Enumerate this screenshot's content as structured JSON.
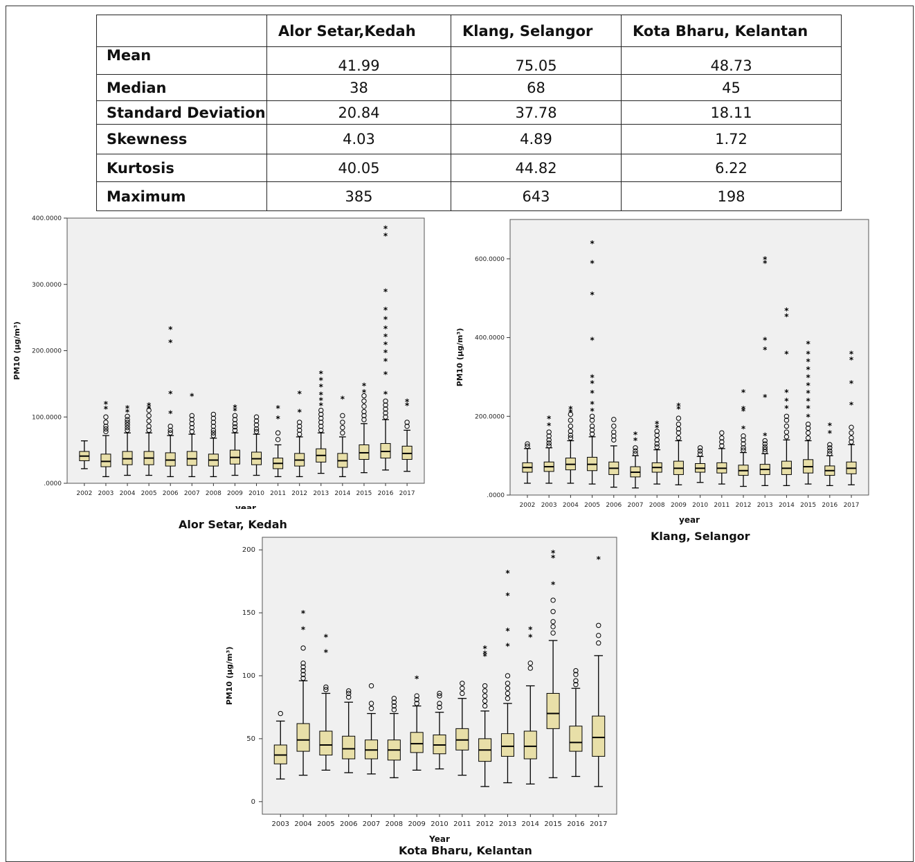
{
  "stats_table": {
    "headers": [
      "",
      "Alor Setar,Kedah",
      "Klang, Selangor",
      "Kota Bharu, Kelantan"
    ],
    "rows": [
      {
        "label": "Mean",
        "values": [
          "41.99",
          "75.05",
          "48.73"
        ]
      },
      {
        "label": "Median",
        "values": [
          "38",
          "68",
          "45"
        ]
      },
      {
        "label": "Standard Deviation",
        "values": [
          "20.84",
          "37.78",
          "18.11"
        ]
      },
      {
        "label": "Skewness",
        "values": [
          "4.03",
          "4.89",
          "1.72"
        ]
      },
      {
        "label": "Kurtosis",
        "values": [
          "40.05",
          "44.82",
          "6.22"
        ]
      },
      {
        "label": "Maximum",
        "values": [
          "385",
          "643",
          "198"
        ]
      }
    ]
  },
  "chart_data": [
    {
      "type": "boxplot",
      "caption": "Alor Setar, Kedah",
      "xlabel": "year",
      "ylabel": "PM10 (μg/m³)",
      "ylim": [
        0,
        400
      ],
      "yticks": [
        ".0000",
        "100.0000",
        "200.0000",
        "300.0000",
        "400.0000"
      ],
      "ytick_values": [
        0,
        100,
        200,
        300,
        400
      ],
      "box_fill": "#e8dfa8",
      "categories": [
        "2002",
        "2003",
        "2004",
        "2005",
        "2006",
        "2007",
        "2008",
        "2009",
        "2010",
        "2011",
        "2012",
        "2013",
        "2014",
        "2015",
        "2016",
        "2017"
      ],
      "boxes": [
        {
          "wl": 22,
          "q1": 34,
          "med": 41,
          "q3": 48,
          "wh": 64,
          "out": [],
          "ext": []
        },
        {
          "wl": 10,
          "q1": 25,
          "med": 33,
          "q3": 44,
          "wh": 72,
          "out": [
            78,
            82,
            86,
            92,
            100
          ],
          "ext": [
            113,
            120
          ]
        },
        {
          "wl": 12,
          "q1": 28,
          "med": 37,
          "q3": 48,
          "wh": 76,
          "out": [
            80,
            84,
            88,
            92,
            96,
            101
          ],
          "ext": [
            108,
            114
          ]
        },
        {
          "wl": 12,
          "q1": 28,
          "med": 38,
          "q3": 48,
          "wh": 76,
          "out": [
            80,
            86,
            94,
            102,
            110
          ],
          "ext": [
            114,
            118
          ]
        },
        {
          "wl": 10,
          "q1": 26,
          "med": 35,
          "q3": 46,
          "wh": 72,
          "out": [
            76,
            80,
            86
          ],
          "ext": [
            106,
            136,
            213,
            233
          ]
        },
        {
          "wl": 10,
          "q1": 27,
          "med": 37,
          "q3": 48,
          "wh": 74,
          "out": [
            78,
            84,
            90,
            96,
            102
          ],
          "ext": [
            132
          ]
        },
        {
          "wl": 10,
          "q1": 26,
          "med": 35,
          "q3": 44,
          "wh": 68,
          "out": [
            72,
            76,
            80,
            86,
            92,
            98,
            104
          ],
          "ext": []
        },
        {
          "wl": 12,
          "q1": 29,
          "med": 39,
          "q3": 50,
          "wh": 76,
          "out": [
            80,
            85,
            90,
            96,
            102
          ],
          "ext": [
            110,
            115
          ]
        },
        {
          "wl": 12,
          "q1": 28,
          "med": 37,
          "q3": 47,
          "wh": 74,
          "out": [
            78,
            82,
            88,
            94,
            100
          ],
          "ext": []
        },
        {
          "wl": 10,
          "q1": 22,
          "med": 30,
          "q3": 38,
          "wh": 58,
          "out": [
            66,
            76
          ],
          "ext": [
            98,
            114
          ]
        },
        {
          "wl": 10,
          "q1": 26,
          "med": 35,
          "q3": 45,
          "wh": 70,
          "out": [
            74,
            80,
            86,
            92
          ],
          "ext": [
            108,
            136
          ]
        },
        {
          "wl": 15,
          "q1": 32,
          "med": 42,
          "q3": 52,
          "wh": 76,
          "out": [
            80,
            86,
            92,
            98,
            104,
            110
          ],
          "ext": [
            118,
            126,
            134,
            146,
            156,
            166
          ]
        },
        {
          "wl": 10,
          "q1": 24,
          "med": 34,
          "q3": 45,
          "wh": 70,
          "out": [
            76,
            84,
            92,
            102
          ],
          "ext": [
            128
          ]
        },
        {
          "wl": 16,
          "q1": 36,
          "med": 46,
          "q3": 58,
          "wh": 90,
          "out": [
            96,
            102,
            108,
            116,
            124,
            132
          ],
          "ext": [
            138,
            148
          ]
        },
        {
          "wl": 20,
          "q1": 38,
          "med": 48,
          "q3": 60,
          "wh": 96,
          "out": [
            100,
            106,
            112,
            118,
            124
          ],
          "ext": [
            135,
            165,
            185,
            198,
            210,
            222,
            234,
            248,
            262,
            290,
            374,
            385
          ]
        },
        {
          "wl": 18,
          "q1": 36,
          "med": 45,
          "q3": 56,
          "wh": 80,
          "out": [
            86,
            92
          ],
          "ext": [
            118,
            124
          ]
        }
      ]
    },
    {
      "type": "boxplot",
      "caption": "Klang, Selangor",
      "xlabel": "year",
      "ylabel": "PM10 (μg/m³)",
      "ylim": [
        0,
        700
      ],
      "yticks": [
        ".0000",
        "200.0000",
        "400.0000",
        "600.0000"
      ],
      "ytick_values": [
        0,
        200,
        400,
        600
      ],
      "box_fill": "#e8dfa8",
      "categories": [
        "2002",
        "2003",
        "2004",
        "2005",
        "2006",
        "2007",
        "2008",
        "2009",
        "2010",
        "2011",
        "2012",
        "2013",
        "2014",
        "2015",
        "2016",
        "2017"
      ],
      "boxes": [
        {
          "wl": 30,
          "q1": 58,
          "med": 70,
          "q3": 82,
          "wh": 118,
          "out": [
            124,
            130
          ],
          "ext": []
        },
        {
          "wl": 30,
          "q1": 60,
          "med": 72,
          "q3": 84,
          "wh": 120,
          "out": [
            125,
            132,
            140,
            150,
            160
          ],
          "ext": [
            178,
            195
          ]
        },
        {
          "wl": 30,
          "q1": 64,
          "med": 78,
          "q3": 94,
          "wh": 138,
          "out": [
            145,
            152,
            162,
            175,
            190,
            205
          ],
          "ext": [
            212,
            220
          ]
        },
        {
          "wl": 28,
          "q1": 62,
          "med": 78,
          "q3": 96,
          "wh": 148,
          "out": [
            155,
            165,
            175,
            190,
            200
          ],
          "ext": [
            215,
            232,
            260,
            285,
            300,
            395,
            510,
            590,
            640
          ]
        },
        {
          "wl": 20,
          "q1": 52,
          "med": 68,
          "q3": 84,
          "wh": 125,
          "out": [
            140,
            150,
            160,
            175,
            192
          ],
          "ext": []
        },
        {
          "wl": 18,
          "q1": 46,
          "med": 58,
          "q3": 72,
          "wh": 100,
          "out": [
            105,
            112,
            120
          ],
          "ext": [
            140,
            155
          ]
        },
        {
          "wl": 28,
          "q1": 58,
          "med": 70,
          "q3": 82,
          "wh": 115,
          "out": [
            122,
            130,
            140,
            152,
            162
          ],
          "ext": [
            172,
            182
          ]
        },
        {
          "wl": 26,
          "q1": 52,
          "med": 68,
          "q3": 86,
          "wh": 138,
          "out": [
            145,
            158,
            168,
            180,
            195
          ],
          "ext": [
            220,
            228
          ]
        },
        {
          "wl": 32,
          "q1": 58,
          "med": 68,
          "q3": 80,
          "wh": 98,
          "out": [
            104,
            112,
            120
          ],
          "ext": []
        },
        {
          "wl": 28,
          "q1": 56,
          "med": 68,
          "q3": 82,
          "wh": 118,
          "out": [
            125,
            135,
            145,
            158
          ],
          "ext": []
        },
        {
          "wl": 22,
          "q1": 50,
          "med": 62,
          "q3": 76,
          "wh": 108,
          "out": [
            114,
            120,
            130,
            140,
            150
          ],
          "ext": [
            170,
            215,
            220,
            262
          ]
        },
        {
          "wl": 24,
          "q1": 52,
          "med": 65,
          "q3": 78,
          "wh": 105,
          "out": [
            110,
            116,
            122,
            130,
            138
          ],
          "ext": [
            152,
            250,
            370,
            395,
            590,
            600
          ]
        },
        {
          "wl": 24,
          "q1": 52,
          "med": 68,
          "q3": 86,
          "wh": 140,
          "out": [
            148,
            160,
            175,
            190,
            200
          ],
          "ext": [
            222,
            240,
            262,
            360,
            455,
            470
          ]
        },
        {
          "wl": 28,
          "q1": 56,
          "med": 72,
          "q3": 90,
          "wh": 138,
          "out": [
            145,
            158,
            170,
            180
          ],
          "ext": [
            200,
            222,
            240,
            260,
            280,
            300,
            320,
            340,
            360,
            385
          ]
        },
        {
          "wl": 24,
          "q1": 50,
          "med": 62,
          "q3": 74,
          "wh": 100,
          "out": [
            105,
            112,
            120,
            128
          ],
          "ext": [
            158,
            178
          ]
        },
        {
          "wl": 26,
          "q1": 54,
          "med": 68,
          "q3": 84,
          "wh": 128,
          "out": [
            135,
            145,
            158,
            172
          ],
          "ext": [
            230,
            285,
            345,
            360
          ]
        }
      ]
    },
    {
      "type": "boxplot",
      "caption": "Kota Bharu, Kelantan",
      "xlabel": "Year",
      "ylabel": "PM10 (μg/m³)",
      "ylim": [
        -10,
        210
      ],
      "yticks": [
        "0",
        "50",
        "100",
        "150",
        "200"
      ],
      "ytick_values": [
        0,
        50,
        100,
        150,
        200
      ],
      "box_fill": "#e8dfa8",
      "categories": [
        "2003",
        "2004",
        "2005",
        "2006",
        "2007",
        "2008",
        "2009",
        "2010",
        "2011",
        "2012",
        "2013",
        "2014",
        "2015",
        "2016",
        "2017"
      ],
      "boxes": [
        {
          "wl": 18,
          "q1": 30,
          "med": 37,
          "q3": 45,
          "wh": 64,
          "out": [
            70
          ],
          "ext": []
        },
        {
          "wl": 21,
          "q1": 40,
          "med": 49,
          "q3": 62,
          "wh": 96,
          "out": [
            98,
            101,
            104,
            107,
            110,
            122
          ],
          "ext": [
            137,
            150
          ]
        },
        {
          "wl": 25,
          "q1": 37,
          "med": 45,
          "q3": 56,
          "wh": 86,
          "out": [
            89,
            91
          ],
          "ext": [
            119,
            131
          ]
        },
        {
          "wl": 23,
          "q1": 34,
          "med": 42,
          "q3": 52,
          "wh": 79,
          "out": [
            83,
            86,
            88
          ],
          "ext": []
        },
        {
          "wl": 22,
          "q1": 34,
          "med": 41,
          "q3": 49,
          "wh": 70,
          "out": [
            74,
            78,
            92
          ],
          "ext": []
        },
        {
          "wl": 19,
          "q1": 33,
          "med": 41,
          "q3": 49,
          "wh": 70,
          "out": [
            73,
            76,
            79,
            82
          ],
          "ext": []
        },
        {
          "wl": 25,
          "q1": 39,
          "med": 46,
          "q3": 55,
          "wh": 76,
          "out": [
            78,
            81,
            84
          ],
          "ext": [
            98
          ]
        },
        {
          "wl": 26,
          "q1": 38,
          "med": 45,
          "q3": 53,
          "wh": 71,
          "out": [
            75,
            78,
            84,
            86
          ],
          "ext": []
        },
        {
          "wl": 21,
          "q1": 41,
          "med": 49,
          "q3": 58,
          "wh": 82,
          "out": [
            86,
            90,
            94
          ],
          "ext": []
        },
        {
          "wl": 12,
          "q1": 32,
          "med": 41,
          "q3": 50,
          "wh": 72,
          "out": [
            76,
            80,
            84,
            88,
            92
          ],
          "ext": [
            116,
            118,
            122
          ]
        },
        {
          "wl": 15,
          "q1": 36,
          "med": 44,
          "q3": 54,
          "wh": 78,
          "out": [
            82,
            86,
            90,
            94,
            100
          ],
          "ext": [
            124,
            136,
            164,
            182
          ]
        },
        {
          "wl": 14,
          "q1": 34,
          "med": 44,
          "q3": 56,
          "wh": 92,
          "out": [
            106,
            110
          ],
          "ext": [
            131,
            137
          ]
        },
        {
          "wl": 19,
          "q1": 58,
          "med": 70,
          "q3": 86,
          "wh": 128,
          "out": [
            134,
            139,
            143,
            151,
            160
          ],
          "ext": [
            173,
            194,
            198
          ]
        },
        {
          "wl": 20,
          "q1": 40,
          "med": 47,
          "q3": 60,
          "wh": 90,
          "out": [
            93,
            96,
            101,
            104
          ],
          "ext": []
        },
        {
          "wl": 12,
          "q1": 36,
          "med": 51,
          "q3": 68,
          "wh": 116,
          "out": [
            126,
            132,
            140
          ],
          "ext": [
            193
          ]
        }
      ]
    }
  ]
}
